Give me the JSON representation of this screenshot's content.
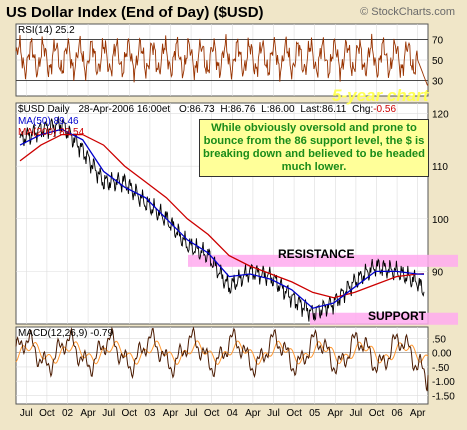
{
  "header": {
    "title": "US Dollar Index (End of Day) ($USD)",
    "source": "© StockCharts.com"
  },
  "annotation": {
    "overlay_label": "5-year chart",
    "comment": "While obviously oversold and prone to bounce from the 86 support level, the $ is breaking down and believed to be headed much lower.",
    "resistance_label": "RESISTANCE",
    "support_label": "SUPPORT"
  },
  "colors": {
    "frame": "#f0e6c8",
    "panel": "#ffffff",
    "price": "#000000",
    "ma50": "#0000cc",
    "ma200": "#cc0000",
    "rsi": "#993300",
    "macd": "#4a1a00",
    "macd_signal": "#ff9933",
    "zone": "#ffaaee",
    "annotation_text": "#1a8c1a",
    "annotation_bg": "#ffff99"
  },
  "chart_data": [
    {
      "type": "line",
      "title": "RSI(14) 25.2",
      "series": [
        {
          "name": "RSI(14)"
        }
      ],
      "y_ticks": [
        "70",
        "50",
        "30"
      ],
      "ylim": [
        15,
        85
      ],
      "overbought": 70,
      "oversold": 30,
      "last_value": 25.2
    },
    {
      "type": "line",
      "title": "$USD Daily 28-Apr-2006 16:00et O:86.73 H:86.76 L:86.00 Last:86.11 Chg:-0.56",
      "quote": {
        "symbol": "$USD Daily",
        "datetime": "28-Apr-2006 16:00et",
        "open_label": "O:",
        "open": "86.73",
        "high_label": "H:",
        "high": "86.76",
        "low_label": "L:",
        "low": "86.00",
        "last_label": "Last:",
        "last": "86.11",
        "chg_label": "Chg:",
        "chg": "-0.56"
      },
      "ylim": [
        80,
        122
      ],
      "y_ticks": [
        "120",
        "110",
        "100",
        "90"
      ],
      "legend": [
        {
          "name": "MA(50)",
          "value": "89.46"
        },
        {
          "name": "MA(200)",
          "value": "89.54"
        }
      ],
      "x": [
        2001.5,
        2001.75,
        2002.0,
        2002.25,
        2002.5,
        2002.75,
        2003.0,
        2003.25,
        2003.5,
        2003.75,
        2004.0,
        2004.25,
        2004.5,
        2004.75,
        2005.0,
        2005.25,
        2005.5,
        2005.75,
        2006.0,
        2006.25,
        2006.33
      ],
      "series_values": {
        "price": [
          115,
          117,
          118,
          113,
          107,
          107,
          103,
          100,
          95,
          93,
          87,
          90,
          89,
          85,
          82,
          84,
          88,
          91,
          90,
          88,
          86.11
        ],
        "ma50": [
          114,
          116,
          117,
          115,
          109,
          106,
          104,
          100,
          96,
          93.5,
          89,
          89.5,
          88.5,
          86.5,
          83,
          84,
          87,
          90,
          90,
          89.5,
          89.46
        ],
        "ma200": [
          111,
          114,
          116,
          116,
          114,
          110,
          107,
          104,
          100,
          97,
          93,
          91,
          89.5,
          88,
          86,
          85,
          86,
          87.5,
          89,
          89.5,
          89.54
        ]
      },
      "resistance_level": 92,
      "support_level": 81
    },
    {
      "type": "line",
      "title": "MACD(12,26,9) -0.79",
      "series": [
        {
          "name": "MACD(12,26,9)"
        },
        {
          "name": "signal"
        }
      ],
      "y_ticks": [
        ".50",
        "0.00",
        "-.50",
        "-1.00",
        "-1.50"
      ],
      "ylim": [
        -1.8,
        0.9
      ],
      "last_value": -0.79
    }
  ],
  "x_axis": {
    "labels": [
      "Jul",
      "Oct",
      "02",
      "Apr",
      "Jul",
      "Oct",
      "03",
      "Apr",
      "Jul",
      "Oct",
      "04",
      "Apr",
      "Jul",
      "Oct",
      "05",
      "Apr",
      "Jul",
      "Oct",
      "06",
      "Apr"
    ]
  }
}
